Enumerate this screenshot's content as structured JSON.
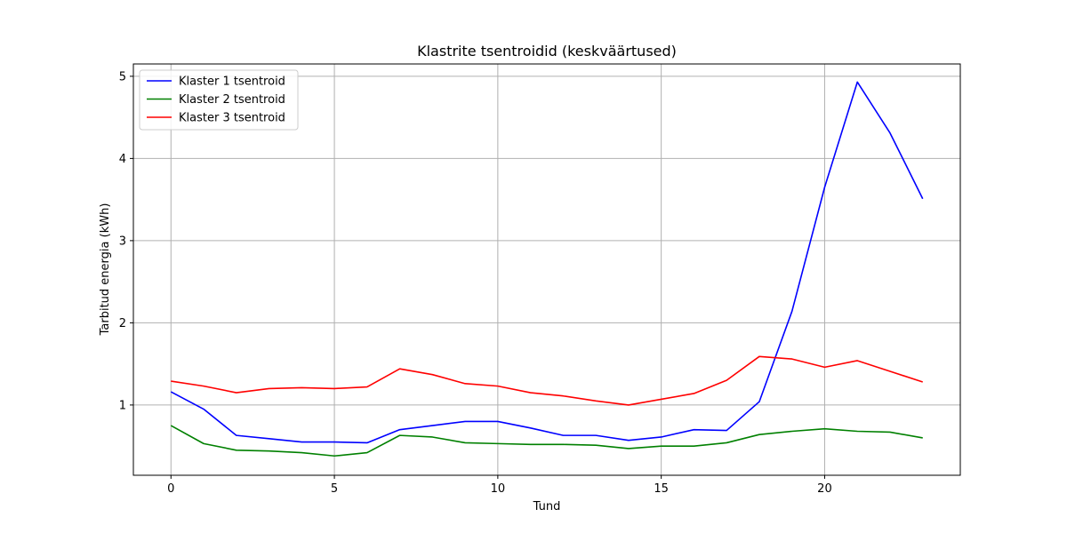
{
  "chart_data": {
    "type": "line",
    "title": "Klastrite tsentroidid (keskväärtused)",
    "xlabel": "Tund",
    "ylabel": "Tarbitud energia (kWh)",
    "xlim": [
      -1.15,
      24.15
    ],
    "ylim": [
      0.145,
      5.15
    ],
    "xticks": [
      0,
      5,
      10,
      15,
      20
    ],
    "yticks": [
      1,
      2,
      3,
      4,
      5
    ],
    "grid": true,
    "legend_position": "top-left",
    "x": [
      0,
      1,
      2,
      3,
      4,
      5,
      6,
      7,
      8,
      9,
      10,
      11,
      12,
      13,
      14,
      15,
      16,
      17,
      18,
      19,
      20,
      21,
      22,
      23
    ],
    "series": [
      {
        "name": "Klaster 1 tsentroid",
        "color": "#0000ff",
        "values": [
          1.16,
          0.95,
          0.63,
          0.59,
          0.55,
          0.55,
          0.54,
          0.7,
          0.75,
          0.8,
          0.8,
          0.72,
          0.63,
          0.63,
          0.57,
          0.61,
          0.7,
          0.69,
          1.04,
          2.14,
          3.65,
          4.93,
          4.31,
          3.51
        ]
      },
      {
        "name": "Klaster 2 tsentroid",
        "color": "#008000",
        "values": [
          0.75,
          0.53,
          0.45,
          0.44,
          0.42,
          0.38,
          0.42,
          0.63,
          0.61,
          0.54,
          0.53,
          0.52,
          0.52,
          0.51,
          0.47,
          0.5,
          0.5,
          0.54,
          0.64,
          0.68,
          0.71,
          0.68,
          0.67,
          0.6
        ]
      },
      {
        "name": "Klaster 3 tsentroid",
        "color": "#ff0000",
        "values": [
          1.29,
          1.23,
          1.15,
          1.2,
          1.21,
          1.2,
          1.22,
          1.44,
          1.37,
          1.26,
          1.23,
          1.15,
          1.11,
          1.05,
          1.0,
          1.07,
          1.14,
          1.3,
          1.59,
          1.56,
          1.46,
          1.54,
          1.41,
          1.28
        ]
      }
    ]
  }
}
